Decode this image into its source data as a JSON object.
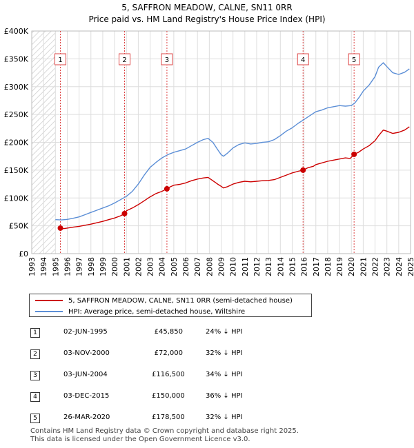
{
  "chart_data": {
    "type": "line",
    "title": "5, SAFFRON MEADOW, CALNE, SN11 0RR",
    "subtitle": "Price paid vs. HM Land Registry's House Price Index (HPI)",
    "xlabel": "",
    "ylabel": "",
    "xlim": [
      1993,
      2025
    ],
    "ylim": [
      0,
      400000
    ],
    "x_ticks": [
      "1993",
      "1994",
      "1995",
      "1996",
      "1997",
      "1998",
      "1999",
      "2000",
      "2001",
      "2002",
      "2003",
      "2004",
      "2005",
      "2006",
      "2007",
      "2008",
      "2009",
      "2010",
      "2011",
      "2012",
      "2013",
      "2014",
      "2015",
      "2016",
      "2017",
      "2018",
      "2019",
      "2020",
      "2021",
      "2022",
      "2023",
      "2024",
      "2025"
    ],
    "y_ticks": [
      {
        "value": 0,
        "label": "£0"
      },
      {
        "value": 50000,
        "label": "£50K"
      },
      {
        "value": 100000,
        "label": "£100K"
      },
      {
        "value": 150000,
        "label": "£150K"
      },
      {
        "value": 200000,
        "label": "£200K"
      },
      {
        "value": 250000,
        "label": "£250K"
      },
      {
        "value": 300000,
        "label": "£300K"
      },
      {
        "value": 350000,
        "label": "£350K"
      },
      {
        "value": 400000,
        "label": "£400K"
      }
    ],
    "hatched_range": [
      1993,
      1995
    ],
    "series": [
      {
        "name": "5, SAFFRON MEADOW, CALNE, SN11 0RR (semi-detached house)",
        "color": "#cc0000",
        "x": [
          1995.42,
          1995.7,
          1996,
          1996.5,
          1997,
          1997.5,
          1998,
          1998.5,
          1999,
          1999.5,
          2000,
          2000.5,
          2000.84,
          2001,
          2001.5,
          2002,
          2002.5,
          2003,
          2003.5,
          2004,
          2004.42,
          2004.7,
          2005,
          2005.5,
          2006,
          2006.5,
          2007,
          2007.5,
          2007.9,
          2008.3,
          2008.7,
          2009,
          2009.2,
          2009.5,
          2010,
          2010.5,
          2011,
          2011.5,
          2012,
          2012.5,
          2013,
          2013.5,
          2014,
          2014.5,
          2015,
          2015.5,
          2015.92,
          2016.3,
          2016.8,
          2017,
          2017.5,
          2018,
          2018.5,
          2019,
          2019.5,
          2019.9,
          2020.23,
          2020.6,
          2021,
          2021.5,
          2022,
          2022.3,
          2022.7,
          2023,
          2023.5,
          2024,
          2024.5,
          2024.9
        ],
        "y": [
          45850,
          45000,
          46000,
          47500,
          49000,
          51000,
          53000,
          55500,
          58000,
          61000,
          64000,
          68000,
          72000,
          77000,
          82000,
          88000,
          95000,
          102000,
          108000,
          112000,
          116500,
          120000,
          123000,
          124500,
          127000,
          131000,
          134000,
          136000,
          137000,
          131000,
          125000,
          121000,
          118000,
          120000,
          125000,
          128000,
          130000,
          129000,
          130000,
          131000,
          131500,
          133000,
          137000,
          141000,
          145000,
          148000,
          150000,
          154000,
          157000,
          160000,
          163000,
          166000,
          168000,
          170000,
          172000,
          171000,
          178500,
          182000,
          188000,
          194000,
          203000,
          212000,
          222000,
          220000,
          216000,
          218000,
          222000,
          228000
        ]
      },
      {
        "name": "HPI: Average price, semi-detached house, Wiltshire",
        "color": "#5b8ed6",
        "x": [
          1995,
          1995.5,
          1996,
          1996.5,
          1997,
          1997.5,
          1998,
          1998.5,
          1999,
          1999.5,
          2000,
          2000.5,
          2001,
          2001.5,
          2002,
          2002.5,
          2003,
          2003.5,
          2004,
          2004.5,
          2005,
          2005.5,
          2006,
          2006.5,
          2007,
          2007.5,
          2007.9,
          2008.3,
          2008.7,
          2009,
          2009.2,
          2009.5,
          2010,
          2010.5,
          2011,
          2011.5,
          2012,
          2012.5,
          2013,
          2013.5,
          2014,
          2014.5,
          2015,
          2015.5,
          2016,
          2016.5,
          2017,
          2017.5,
          2018,
          2018.5,
          2019,
          2019.5,
          2020,
          2020.3,
          2020.7,
          2021,
          2021.5,
          2022,
          2022.3,
          2022.7,
          2023,
          2023.5,
          2024,
          2024.5,
          2024.9
        ],
        "y": [
          61000,
          60500,
          61500,
          63500,
          66000,
          70000,
          74000,
          78000,
          82000,
          86000,
          91000,
          97000,
          103000,
          112000,
          125000,
          141000,
          155000,
          164000,
          172000,
          178000,
          182000,
          185000,
          188000,
          194000,
          200000,
          205000,
          207000,
          200000,
          187000,
          178000,
          175000,
          180000,
          190000,
          196000,
          199000,
          197000,
          198000,
          200000,
          201000,
          205000,
          212000,
          220000,
          226000,
          234000,
          241000,
          248000,
          255000,
          258000,
          262000,
          264000,
          266000,
          265000,
          266000,
          271000,
          282000,
          292000,
          303000,
          318000,
          335000,
          343000,
          336000,
          325000,
          322000,
          326000,
          332000
        ]
      }
    ],
    "sales": [
      {
        "n": "1",
        "year": 1995.42,
        "price": 45850
      },
      {
        "n": "2",
        "year": 2000.84,
        "price": 72000
      },
      {
        "n": "3",
        "year": 2004.42,
        "price": 116500
      },
      {
        "n": "4",
        "year": 2015.92,
        "price": 150000
      },
      {
        "n": "5",
        "year": 2020.23,
        "price": 178500
      }
    ]
  },
  "legend": {
    "property": "5, SAFFRON MEADOW, CALNE, SN11 0RR (semi-detached house)",
    "hpi": "HPI: Average price, semi-detached house, Wiltshire"
  },
  "table": [
    {
      "n": "1",
      "date": "02-JUN-1995",
      "price": "£45,850",
      "hpi": "24% ↓ HPI"
    },
    {
      "n": "2",
      "date": "03-NOV-2000",
      "price": "£72,000",
      "hpi": "32% ↓ HPI"
    },
    {
      "n": "3",
      "date": "03-JUN-2004",
      "price": "£116,500",
      "hpi": "34% ↓ HPI"
    },
    {
      "n": "4",
      "date": "03-DEC-2015",
      "price": "£150,000",
      "hpi": "36% ↓ HPI"
    },
    {
      "n": "5",
      "date": "26-MAR-2020",
      "price": "£178,500",
      "hpi": "32% ↓ HPI"
    }
  ],
  "footer": {
    "line1": "Contains HM Land Registry data © Crown copyright and database right 2025.",
    "line2": "This data is licensed under the Open Government Licence v3.0."
  },
  "colors": {
    "property": "#cc0000",
    "hpi": "#5b8ed6",
    "marker_line": "#dd4444",
    "hatch": "#cccccc"
  }
}
